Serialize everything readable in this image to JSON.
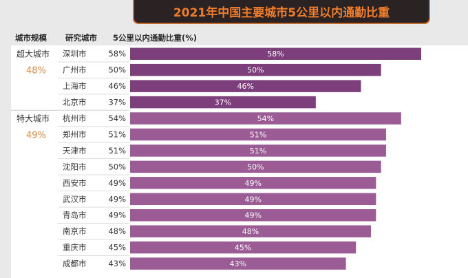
{
  "headers": {
    "group": "城市规模",
    "city": "研究城市",
    "metric": "5公里以内通勤比重(%)"
  },
  "chart_data": {
    "type": "bar",
    "orientation": "horizontal",
    "title": "2021年中国主要城市5公里以内通勤比重",
    "xlabel": "",
    "ylabel": "",
    "xlim": [
      0,
      60
    ],
    "unit": "%",
    "grid": false,
    "groups": [
      {
        "name": "超大城市",
        "share": "48%",
        "count": 4
      },
      {
        "name": "特大城市",
        "share": "49%",
        "count": 10
      }
    ],
    "categories": [
      "深圳市",
      "广州市",
      "上海市",
      "北京市",
      "杭州市",
      "郑州市",
      "天津市",
      "沈阳市",
      "西安市",
      "武汉市",
      "青岛市",
      "南京市",
      "重庆市",
      "成都市"
    ],
    "values": [
      58,
      50,
      46,
      37,
      54,
      51,
      51,
      50,
      49,
      49,
      49,
      48,
      45,
      43
    ],
    "value_labels": [
      "58%",
      "50%",
      "46%",
      "37%",
      "54%",
      "51%",
      "51%",
      "50%",
      "49%",
      "49%",
      "49%",
      "48%",
      "45%",
      "43%"
    ],
    "colors": {
      "bar_supersize": "#7d3f7c",
      "bar_megacity": "#9b5c96",
      "group_share": "#d8894a",
      "title_text": "#f07d2c",
      "title_bg": "#2a2223",
      "title_border": "#c66f2c"
    }
  }
}
